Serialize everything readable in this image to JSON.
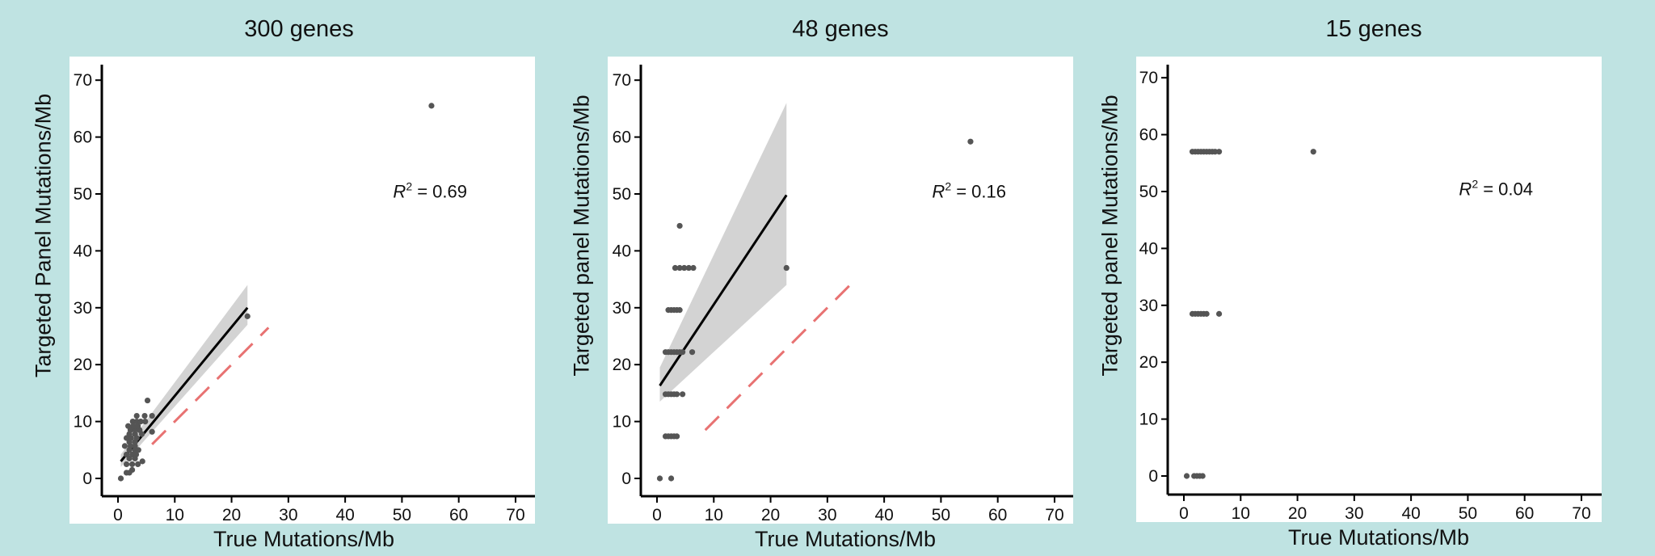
{
  "chart_data": [
    {
      "type": "scatter",
      "title": "300 genes",
      "xlabel": "True Mutations/Mb",
      "ylabel": "Targeted Panel Mutations/Mb",
      "xlim": [
        -1,
        72
      ],
      "ylim": [
        -1,
        72
      ],
      "xticks": [
        0,
        10,
        20,
        30,
        40,
        50,
        60,
        70
      ],
      "yticks": [
        0,
        10,
        20,
        30,
        40,
        50,
        60,
        70
      ],
      "annotation": {
        "label": "R",
        "sup": "2",
        "value": " = 0.69",
        "x": 51,
        "y": 50.5
      },
      "fit": {
        "x0": 0.5,
        "y0": 3,
        "x1": 22.8,
        "y1": 30,
        "band_lo_end": 27,
        "band_hi_end": 34,
        "band_lo_start": 2,
        "band_hi_start": 4.2
      },
      "identity": {
        "x0": 6,
        "x1": 26.5
      },
      "points": [
        [
          0.5,
          0
        ],
        [
          1.5,
          1
        ],
        [
          2,
          1
        ],
        [
          2.5,
          1.5
        ],
        [
          1.5,
          2.5
        ],
        [
          2.5,
          2.5
        ],
        [
          3.5,
          2.5
        ],
        [
          4.3,
          3
        ],
        [
          2,
          3.5
        ],
        [
          3,
          3.5
        ],
        [
          1.5,
          4.2
        ],
        [
          2.5,
          4.2
        ],
        [
          3.2,
          4.2
        ],
        [
          2,
          5
        ],
        [
          3,
          5
        ],
        [
          3.6,
          5
        ],
        [
          1.2,
          5.7
        ],
        [
          2.2,
          5.7
        ],
        [
          3,
          5.7
        ],
        [
          2,
          6.4
        ],
        [
          3,
          6.4
        ],
        [
          1.5,
          7.1
        ],
        [
          2.3,
          7.1
        ],
        [
          3.3,
          7.1
        ],
        [
          2,
          7.8
        ],
        [
          3,
          7.8
        ],
        [
          4.2,
          7.8
        ],
        [
          6,
          8.2
        ],
        [
          2.2,
          8.5
        ],
        [
          3,
          8.5
        ],
        [
          3.8,
          8.5
        ],
        [
          1.8,
          9.2
        ],
        [
          2.7,
          9.2
        ],
        [
          3.5,
          9.2
        ],
        [
          2.6,
          10
        ],
        [
          3.3,
          10
        ],
        [
          4,
          10
        ],
        [
          4.8,
          10
        ],
        [
          3.3,
          11
        ],
        [
          4.7,
          11
        ],
        [
          6,
          11
        ],
        [
          5.2,
          13.7
        ],
        [
          22.8,
          28.5
        ],
        [
          55.2,
          65.5
        ]
      ]
    },
    {
      "type": "scatter",
      "title": "48 genes",
      "xlabel": "True Mutations/Mb",
      "ylabel": "Targeted panel Mutations/Mb",
      "xlim": [
        -1,
        72
      ],
      "ylim": [
        -1,
        72
      ],
      "xticks": [
        0,
        10,
        20,
        30,
        40,
        50,
        60,
        70
      ],
      "yticks": [
        0,
        10,
        20,
        30,
        40,
        50,
        60,
        70
      ],
      "annotation": {
        "label": "R",
        "sup": "2",
        "value": " = 0.16",
        "x": 51,
        "y": 50.5
      },
      "fit": {
        "x0": 0.5,
        "y0": 16.3,
        "x1": 22.8,
        "y1": 49.8,
        "band_lo_end": 34,
        "band_hi_end": 66,
        "band_lo_start": 13.5,
        "band_hi_start": 19.5
      },
      "identity": {
        "x0": 8.5,
        "x1": 35
      },
      "points": [
        [
          0.5,
          0
        ],
        [
          2.5,
          0
        ],
        [
          1.5,
          7.4
        ],
        [
          2,
          7.4
        ],
        [
          2.5,
          7.4
        ],
        [
          3,
          7.4
        ],
        [
          3.5,
          7.4
        ],
        [
          1.5,
          14.8
        ],
        [
          2,
          14.8
        ],
        [
          2.5,
          14.8
        ],
        [
          3,
          14.8
        ],
        [
          3.5,
          14.8
        ],
        [
          4.5,
          14.8
        ],
        [
          1.5,
          22.2
        ],
        [
          2,
          22.2
        ],
        [
          2.5,
          22.2
        ],
        [
          3,
          22.2
        ],
        [
          3.5,
          22.2
        ],
        [
          4,
          22.2
        ],
        [
          4.5,
          22.2
        ],
        [
          6.2,
          22.2
        ],
        [
          2,
          29.6
        ],
        [
          2.5,
          29.6
        ],
        [
          3,
          29.6
        ],
        [
          3.5,
          29.6
        ],
        [
          4,
          29.6
        ],
        [
          3.2,
          37
        ],
        [
          4,
          37
        ],
        [
          4.8,
          37
        ],
        [
          5.6,
          37
        ],
        [
          6.4,
          37
        ],
        [
          4,
          44.4
        ],
        [
          22.8,
          37
        ],
        [
          55.2,
          59.2
        ]
      ]
    },
    {
      "type": "scatter",
      "title": "15 genes",
      "xlabel": "True Mutations/Mb",
      "ylabel": "Targeted panel Mutations/Mb",
      "xlim": [
        -1,
        72
      ],
      "ylim": [
        -1,
        72
      ],
      "xticks": [
        0,
        10,
        20,
        30,
        40,
        50,
        60,
        70
      ],
      "yticks": [
        0,
        10,
        20,
        30,
        40,
        50,
        60,
        70
      ],
      "annotation": {
        "label": "R",
        "sup": "2",
        "value": " = 0.04",
        "x": 51,
        "y": 50.5
      },
      "points": [
        [
          0.5,
          0
        ],
        [
          1.8,
          0
        ],
        [
          2.3,
          0
        ],
        [
          2.8,
          0
        ],
        [
          3.3,
          0
        ],
        [
          1.5,
          28.5
        ],
        [
          2,
          28.5
        ],
        [
          2.5,
          28.5
        ],
        [
          3,
          28.5
        ],
        [
          3.5,
          28.5
        ],
        [
          4,
          28.5
        ],
        [
          6.2,
          28.5
        ],
        [
          1.5,
          57
        ],
        [
          2,
          57
        ],
        [
          2.5,
          57
        ],
        [
          3,
          57
        ],
        [
          3.5,
          57
        ],
        [
          4,
          57
        ],
        [
          4.5,
          57
        ],
        [
          5,
          57
        ],
        [
          5.5,
          57
        ],
        [
          6.2,
          57
        ],
        [
          22.8,
          57
        ]
      ]
    }
  ],
  "colors": {
    "background": "#bfe3e2",
    "panel": "#ffffff",
    "point": "#555555",
    "fit": "#000000",
    "band": "#d3d3d3",
    "identity": "#e87272"
  }
}
